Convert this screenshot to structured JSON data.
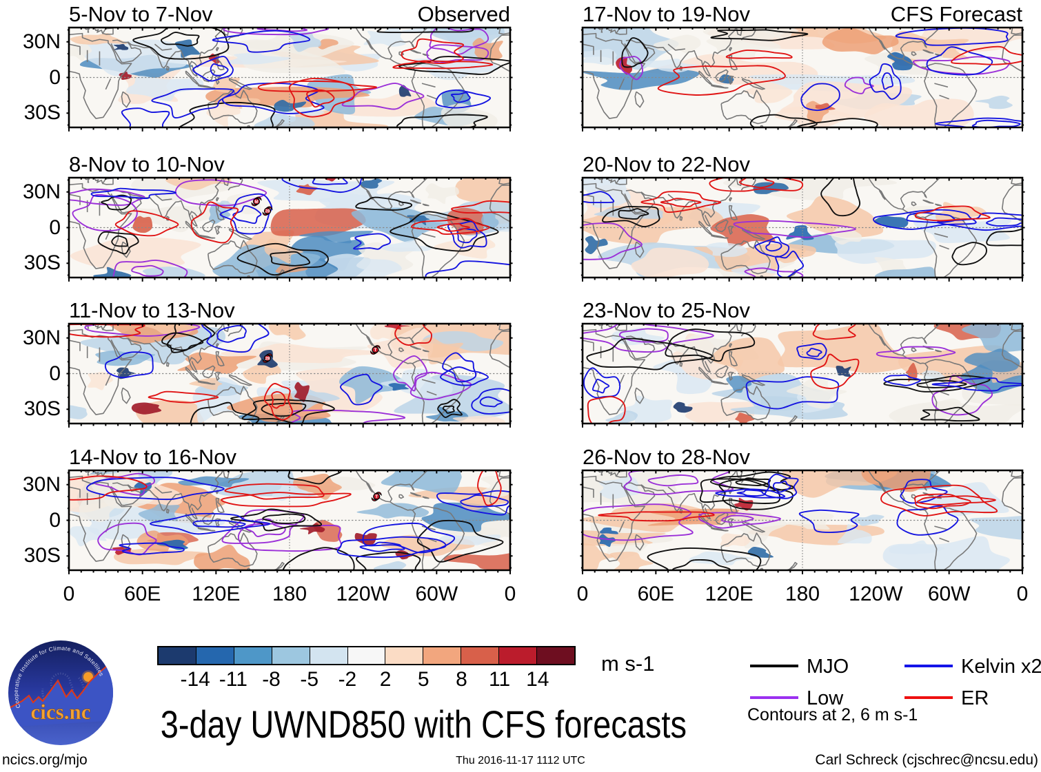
{
  "figure": {
    "title": "3-day UWND850 with CFS forecasts",
    "footer": {
      "left": "ncics.org/mjo",
      "center": "Thu 2016-11-17 1112 UTC",
      "right": "Carl Schreck (cjschrec@ncsu.edu)"
    },
    "logo": {
      "ring_text": "Cooperative Institute for Climate and Satellites",
      "name": "cics.nc"
    }
  },
  "chart_data": {
    "type": "filled_contour_map_grid",
    "field": "850-hPa zonal wind anomaly (shaded, m s-1) with equatorial wave contours",
    "columns": [
      {
        "heading": "Observed"
      },
      {
        "heading": "CFS Forecast"
      }
    ],
    "panels": [
      {
        "label": "5-Nov to 7-Nov",
        "column": "Observed",
        "seed": 7,
        "markers": []
      },
      {
        "label": "8-Nov to 10-Nov",
        "column": "Observed",
        "seed": 13,
        "markers": [
          {
            "label": "M",
            "lon": 153,
            "lat": 22
          },
          {
            "label": "28",
            "lon": 162,
            "lat": 14
          }
        ]
      },
      {
        "label": "11-Nov to 13-Nov",
        "column": "Observed",
        "seed": 21,
        "markers": [
          {
            "label": "28",
            "lon": 162,
            "lat": 13
          },
          {
            "label": "T",
            "lon": 250,
            "lat": 20
          }
        ]
      },
      {
        "label": "14-Nov to 16-Nov",
        "column": "Observed",
        "seed": 5,
        "markers": [
          {
            "label": "T",
            "lon": 251,
            "lat": 20
          }
        ]
      },
      {
        "label": "17-Nov to 19-Nov",
        "column": "CFS Forecast",
        "seed": 42,
        "markers": []
      },
      {
        "label": "20-Nov to 22-Nov",
        "column": "CFS Forecast",
        "seed": 57,
        "markers": []
      },
      {
        "label": "23-Nov to 25-Nov",
        "column": "CFS Forecast",
        "seed": 88,
        "markers": []
      },
      {
        "label": "26-Nov to 28-Nov",
        "column": "CFS Forecast",
        "seed": 31,
        "markers": []
      }
    ],
    "x_tick_labels": [
      "0",
      "60E",
      "120E",
      "180",
      "120W",
      "60W",
      "0"
    ],
    "x_tick_lons": [
      0,
      60,
      120,
      180,
      240,
      300,
      360
    ],
    "y_tick_labels": [
      "30N",
      "0",
      "30S"
    ],
    "y_tick_lats": [
      30,
      0,
      -30
    ],
    "colorbar": {
      "tick_labels": [
        "-14",
        "-11",
        "-8",
        "-5",
        "-2",
        "2",
        "5",
        "8",
        "11",
        "14"
      ],
      "units": "m s-1",
      "colors": [
        "#1c3a6e",
        "#2567ae",
        "#4e97c8",
        "#9dc7e0",
        "#d3e4f0",
        "#f7f7f7",
        "#fbdcc5",
        "#f2a67e",
        "#d8604a",
        "#bb1c2c",
        "#6e0e20"
      ]
    },
    "legend": [
      {
        "label": "MJO",
        "color": "#000000"
      },
      {
        "label": "Kelvin x2",
        "color": "#1414e8"
      },
      {
        "label": "Low",
        "color": "#9b30f0"
      },
      {
        "label": "ER",
        "color": "#ee1010"
      }
    ],
    "contour_note": "Contours at 2, 6 m s-1"
  }
}
